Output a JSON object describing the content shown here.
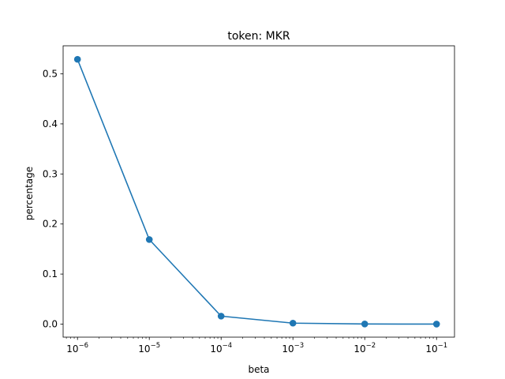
{
  "chart_data": {
    "type": "line",
    "title": "token: MKR",
    "xlabel": "beta",
    "ylabel": "percentage",
    "x_scale": "log",
    "x": [
      1e-06,
      1e-05,
      0.0001,
      0.001,
      0.01,
      0.1
    ],
    "x_tick_labels": [
      {
        "base": "10",
        "exp": "−6"
      },
      {
        "base": "10",
        "exp": "−5"
      },
      {
        "base": "10",
        "exp": "−4"
      },
      {
        "base": "10",
        "exp": "−3"
      },
      {
        "base": "10",
        "exp": "−2"
      },
      {
        "base": "10",
        "exp": "−1"
      }
    ],
    "y_ticks": [
      0.0,
      0.1,
      0.2,
      0.3,
      0.4,
      0.5
    ],
    "y_tick_labels": [
      "0.0",
      "0.1",
      "0.2",
      "0.3",
      "0.4",
      "0.5"
    ],
    "ylim": [
      -0.026,
      0.556
    ],
    "xlim": [
      -6.2,
      -0.75
    ],
    "series": [
      {
        "values": [
          0.529,
          0.169,
          0.016,
          0.002,
          0.0003,
          0.0001
        ],
        "color": "#1f77b4",
        "marker": "circle"
      }
    ],
    "grid": false,
    "legend": false
  }
}
